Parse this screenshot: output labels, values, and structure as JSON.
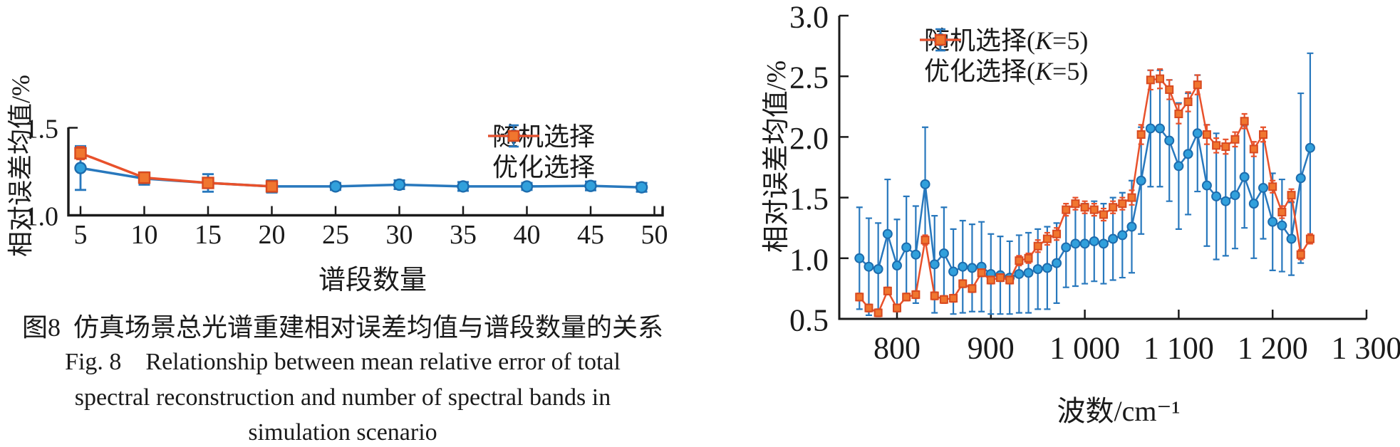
{
  "colors": {
    "axis": "#1a1a1a",
    "blue_line": "#2878bd",
    "blue_marker_fill": "#31a0dc",
    "blue_marker_edge": "#1d6cad",
    "orange_line": "#e8512b",
    "orange_marker_fill": "#f0762f",
    "orange_marker_edge": "#d84a20"
  },
  "caption": {
    "line1": "图8 仿真场景总光谱重建相对误差均值与谱段数量的关系",
    "line2": "Fig. 8  Relationship between mean relative error of total",
    "line3": "spectral reconstruction and number of spectral bands in",
    "line4": "simulation scenario"
  },
  "chart_data": [
    {
      "id": "left",
      "type": "line",
      "title": "",
      "xlabel": "谱段数量",
      "ylabel": "相对误差均值/%",
      "xlim": [
        4.1,
        50.6
      ],
      "ylim": [
        1.0,
        1.5
      ],
      "grid": false,
      "legend_position": "upper right",
      "xticks": [
        5,
        10,
        15,
        20,
        25,
        30,
        35,
        40,
        45,
        50
      ],
      "xtick_labels": [
        "5",
        "10",
        "15",
        "20",
        "25",
        "30",
        "35",
        "40",
        "45",
        "50"
      ],
      "yticks": [
        1.0,
        1.5
      ],
      "ytick_labels": [
        "1.0",
        "1.5"
      ],
      "series": [
        {
          "name": "随机选择",
          "marker": "circle",
          "legend_errorbar": true,
          "x": [
            5,
            10,
            15,
            20,
            25,
            30,
            35,
            40,
            45,
            49
          ],
          "values": [
            1.27,
            1.21,
            1.185,
            1.165,
            1.165,
            1.175,
            1.165,
            1.165,
            1.168,
            1.16
          ],
          "err": [
            0.125,
            0.035,
            0.05,
            0.035,
            0.02,
            0.025,
            0.025,
            0.02,
            0.025,
            0.025
          ]
        },
        {
          "name": "优化选择",
          "marker": "square",
          "legend_errorbar": false,
          "x": [
            5,
            10,
            15,
            20
          ],
          "values": [
            1.355,
            1.215,
            1.185,
            1.165
          ],
          "err": [
            0.035,
            0.03,
            0.025,
            0.02
          ]
        }
      ]
    },
    {
      "id": "right",
      "type": "line",
      "title": "",
      "xlabel": "波数/cm⁻¹",
      "ylabel": "相对误差均值/%",
      "xlim": [
        738,
        1300
      ],
      "ylim": [
        0.5,
        3.0
      ],
      "grid": false,
      "legend_position": "upper left",
      "xticks": [
        800,
        900,
        1000,
        1100,
        1200,
        1300
      ],
      "xtick_labels": [
        "800",
        "900",
        "1 000",
        "1 100",
        "1 200",
        "1 300"
      ],
      "yticks": [
        0.5,
        1.0,
        1.5,
        2.0,
        2.5,
        3.0
      ],
      "ytick_labels": [
        "0.5",
        "1.0",
        "1.5",
        "2.0",
        "2.5",
        "3.0"
      ],
      "series": [
        {
          "name": "随机选择(K=5)",
          "marker": "circle",
          "legend_errorbar": true,
          "x": [
            760,
            770,
            780,
            790,
            800,
            810,
            820,
            830,
            840,
            850,
            860,
            870,
            880,
            890,
            900,
            910,
            920,
            930,
            940,
            950,
            960,
            970,
            980,
            990,
            1000,
            1010,
            1020,
            1030,
            1040,
            1050,
            1060,
            1070,
            1080,
            1090,
            1100,
            1110,
            1120,
            1130,
            1140,
            1150,
            1160,
            1170,
            1180,
            1190,
            1200,
            1210,
            1220,
            1230,
            1240
          ],
          "values": [
            1.0,
            0.93,
            0.91,
            1.2,
            0.94,
            1.09,
            1.03,
            1.61,
            0.95,
            1.04,
            0.89,
            0.93,
            0.92,
            0.93,
            0.87,
            0.86,
            0.84,
            0.87,
            0.88,
            0.91,
            0.92,
            0.96,
            1.09,
            1.12,
            1.12,
            1.14,
            1.12,
            1.16,
            1.19,
            1.26,
            1.64,
            2.07,
            2.07,
            1.97,
            1.76,
            1.86,
            2.03,
            1.6,
            1.51,
            1.47,
            1.52,
            1.67,
            1.45,
            1.58,
            1.3,
            1.27,
            1.16,
            1.66,
            1.91
          ],
          "err": [
            0.42,
            0.4,
            0.38,
            0.45,
            0.38,
            0.42,
            0.4,
            0.47,
            0.4,
            0.38,
            0.35,
            0.38,
            0.36,
            0.37,
            0.33,
            0.32,
            0.3,
            0.32,
            0.33,
            0.33,
            0.34,
            0.33,
            0.33,
            0.35,
            0.33,
            0.33,
            0.33,
            0.34,
            0.35,
            0.38,
            0.44,
            0.48,
            0.48,
            0.5,
            0.52,
            0.5,
            0.48,
            0.5,
            0.52,
            0.45,
            0.44,
            0.42,
            0.45,
            0.42,
            0.4,
            0.38,
            0.3,
            0.7,
            0.78
          ]
        },
        {
          "name": "优化选择(K=5)",
          "marker": "square",
          "legend_errorbar": false,
          "x": [
            760,
            770,
            780,
            790,
            800,
            810,
            820,
            830,
            840,
            850,
            860,
            870,
            880,
            890,
            900,
            910,
            920,
            930,
            940,
            950,
            960,
            970,
            980,
            990,
            1000,
            1010,
            1020,
            1030,
            1040,
            1050,
            1060,
            1070,
            1080,
            1090,
            1100,
            1110,
            1120,
            1130,
            1140,
            1150,
            1160,
            1170,
            1180,
            1190,
            1200,
            1210,
            1220,
            1230,
            1240
          ],
          "values": [
            0.68,
            0.59,
            0.55,
            0.73,
            0.59,
            0.68,
            0.7,
            1.15,
            0.69,
            0.66,
            0.67,
            0.79,
            0.75,
            0.88,
            0.82,
            0.84,
            0.82,
            0.98,
            1.0,
            1.1,
            1.16,
            1.2,
            1.4,
            1.45,
            1.42,
            1.4,
            1.36,
            1.42,
            1.45,
            1.5,
            2.02,
            2.47,
            2.48,
            2.39,
            2.19,
            2.29,
            2.43,
            2.02,
            1.93,
            1.92,
            1.98,
            2.13,
            1.9,
            2.02,
            1.59,
            1.38,
            1.52,
            1.03,
            1.16
          ],
          "err": [
            0.03,
            0.03,
            0.03,
            0.03,
            0.03,
            0.03,
            0.03,
            0.04,
            0.03,
            0.03,
            0.03,
            0.03,
            0.03,
            0.03,
            0.03,
            0.03,
            0.03,
            0.04,
            0.04,
            0.05,
            0.05,
            0.05,
            0.05,
            0.05,
            0.05,
            0.05,
            0.05,
            0.05,
            0.05,
            0.06,
            0.08,
            0.08,
            0.08,
            0.08,
            0.08,
            0.08,
            0.08,
            0.08,
            0.06,
            0.06,
            0.06,
            0.06,
            0.06,
            0.06,
            0.05,
            0.05,
            0.05,
            0.04,
            0.04
          ]
        }
      ]
    }
  ]
}
